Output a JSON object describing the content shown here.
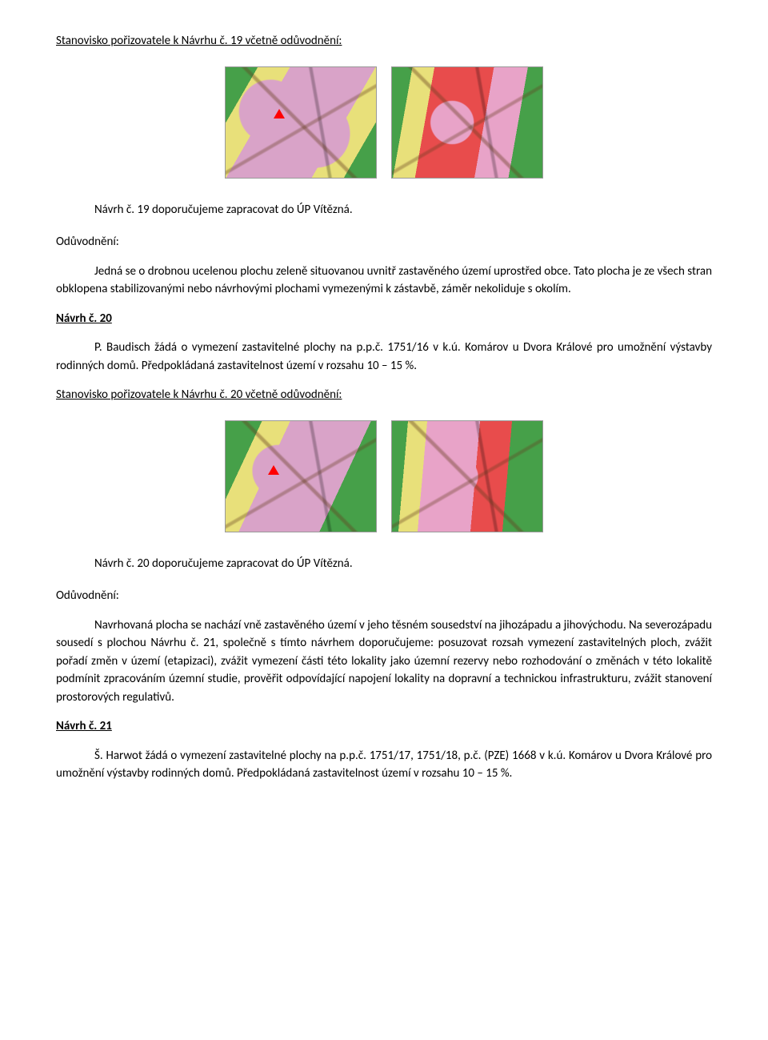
{
  "section19": {
    "heading": "Stanovisko pořizovatele k Návrhu č. 19 včetně odůvodnění:",
    "recommendation": "Návrh č. 19 doporučujeme zapracovat do ÚP Vítězná.",
    "oduvodneni_label": "Odůvodnění:",
    "justification": "Jedná se o drobnou ucelenou plochu zeleně situovanou uvnitř zastavěného území uprostřed obce. Tato plocha je ze všech stran obklopena stabilizovanými nebo návrhovými plochami vymezenými k zástavbě, záměr nekoliduje s okolím."
  },
  "section20": {
    "navrh_heading": "Návrh č. 20",
    "request_indent": "P. Baudisch žádá o vymezení zastavitelné plochy na p.p.č. 1751/16 v k.ú. Komárov u Dvora",
    "request_rest": "Králové pro umožnění výstavby rodinných domů. Předpokládaná zastavitelnost území v rozsahu 10 – 15 %.",
    "stanovisko_heading": "Stanovisko pořizovatele k Návrhu č. 20 včetně odůvodnění:",
    "recommendation": "Návrh č. 20 doporučujeme zapracovat do ÚP Vítězná.",
    "oduvodneni_label": "Odůvodnění:",
    "justification": "Navrhovaná plocha se nachází vně zastavěného území v jeho těsném sousedství na jihozápadu a jihovýchodu. Na severozápadu sousedí s plochou Návrhu č. 21, společně s tímto návrhem doporučujeme: posuzovat rozsah vymezení zastavitelných ploch, zvážit pořadí změn v území (etapizaci), zvážit vymezení části této lokality jako územní rezervy nebo rozhodování o změnách v této lokalitě podmínit zpracováním územní studie, prověřit odpovídající napojení lokality na dopravní a technickou infrastrukturu, zvážit stanovení prostorových regulativů."
  },
  "section21": {
    "navrh_heading": "Návrh č. 21",
    "request_indent": "Š. Harwot žádá o vymezení zastavitelné plochy na p.p.č. 1751/17, 1751/18, p.č. (PZE) 1668 v",
    "request_rest": "k.ú. Komárov u Dvora Králové pro umožnění výstavby rodinných domů. Předpokládaná zastavitelnost území v rozsahu 10 – 15 %."
  },
  "maps": {
    "colors": {
      "green": "#46a049",
      "yellow": "#e8e07a",
      "pink": "#d9a3c8",
      "lightpink": "#e8a3c8",
      "red": "#e84c4c",
      "marker": "#ff0000"
    }
  }
}
